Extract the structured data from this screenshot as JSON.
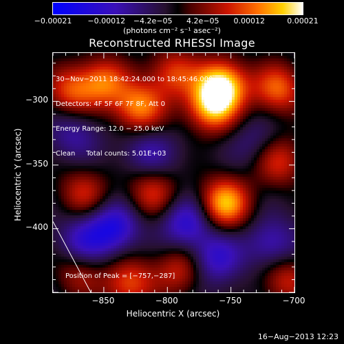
{
  "chart_data": {
    "type": "heatmap",
    "title": "Reconstructed RHESSI Image",
    "xlabel": "Heliocentric X (arcsec)",
    "ylabel": "Heliocentric Y (arcsec)",
    "xlim": [
      -890,
      -700
    ],
    "ylim": [
      -450,
      -262
    ],
    "x_ticks": [
      {
        "value": -850,
        "label": "−850"
      },
      {
        "value": -800,
        "label": "−800"
      },
      {
        "value": -750,
        "label": "−750"
      },
      {
        "value": -700,
        "label": "−700"
      }
    ],
    "y_ticks": [
      {
        "value": -300,
        "label": "−300"
      },
      {
        "value": -350,
        "label": "−350"
      },
      {
        "value": -400,
        "label": "−400"
      }
    ],
    "colorbar": {
      "min": -0.00021,
      "max": 0.00021,
      "ticks": [
        {
          "value": -0.00021,
          "label": "−0.00021"
        },
        {
          "value": -0.00012,
          "label": "−0.00012"
        },
        {
          "value": -4.2e-05,
          "label": "−4.2e−05"
        },
        {
          "value": 4.2e-05,
          "label": "4.2e−05"
        },
        {
          "value": 0.00012,
          "label": "0.00012"
        },
        {
          "value": 0.00021,
          "label": "0.00021"
        }
      ],
      "unit_label": "(photons cm⁻² s⁻¹ asec⁻²)"
    },
    "annotations": {
      "time_range": "30−Nov−2011 18:42:24.000 to 18:45:46.000",
      "detectors": "Detectors: 4F 5F 6F 7F 8F, Att 0",
      "energy_range": "Energy Range: 12.0 − 25.0 keV",
      "clean_counts": "Clean     Total counts: 5.01E+03",
      "peak_label": "Position of Peak = [−757,−287]"
    },
    "peak_position": [
      -757,
      -287
    ],
    "sources": [
      {
        "x": -757,
        "y": -287,
        "value": 0.00021
      },
      {
        "x": -765,
        "y": -305,
        "value": 0.00017
      },
      {
        "x": -755,
        "y": -380,
        "value": 0.00019
      },
      {
        "x": -822,
        "y": -305,
        "value": 0.00016
      },
      {
        "x": -850,
        "y": -285,
        "value": 0.00014
      },
      {
        "x": -876,
        "y": -292,
        "value": 0.00012
      },
      {
        "x": -795,
        "y": -278,
        "value": 0.00012
      },
      {
        "x": -713,
        "y": -290,
        "value": 0.00014
      },
      {
        "x": -712,
        "y": -347,
        "value": 0.00011
      },
      {
        "x": -812,
        "y": -372,
        "value": 0.00011
      },
      {
        "x": -866,
        "y": -372,
        "value": 0.0001
      },
      {
        "x": -830,
        "y": -443,
        "value": 0.00013
      },
      {
        "x": -790,
        "y": -432,
        "value": 0.0001
      },
      {
        "x": -870,
        "y": -435,
        "value": 8e-05
      },
      {
        "x": -707,
        "y": -440,
        "value": 0.0001
      },
      {
        "x": -842,
        "y": -399,
        "value": -0.00013
      },
      {
        "x": -866,
        "y": -410,
        "value": -0.0001
      },
      {
        "x": -785,
        "y": -395,
        "value": -0.00012
      },
      {
        "x": -762,
        "y": -423,
        "value": -0.00011
      },
      {
        "x": -718,
        "y": -412,
        "value": -9e-05
      },
      {
        "x": -815,
        "y": -340,
        "value": -8e-05
      },
      {
        "x": -873,
        "y": -326,
        "value": -7e-05
      },
      {
        "x": -731,
        "y": -332,
        "value": -5e-05
      }
    ]
  },
  "footer": {
    "date": "16−Aug−2013 12:23"
  }
}
